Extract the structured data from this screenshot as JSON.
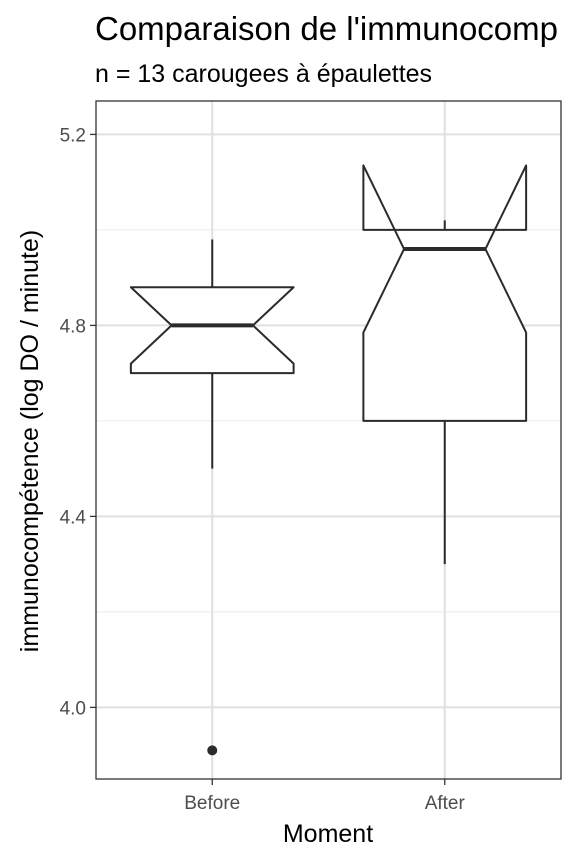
{
  "chart_data": {
    "type": "boxplot",
    "title": "Comparaison de l'immunocomp",
    "subtitle": "n = 13 carougees à épaulettes",
    "xlabel": "Moment",
    "ylabel": "immunocompétence (log DO / minute)",
    "categories": [
      "Before",
      "After"
    ],
    "ylim": [
      3.85,
      5.27
    ],
    "yticks": [
      4.0,
      4.4,
      4.8,
      5.2
    ],
    "ytick_labels": [
      "4.0",
      "4.4",
      "4.8",
      "5.2"
    ],
    "grid": true,
    "notched": true,
    "boxes": [
      {
        "category": "Before",
        "whisker_low": 4.5,
        "q1": 4.7,
        "median": 4.8,
        "q3": 4.88,
        "whisker_high": 4.98,
        "notch_low": 4.72,
        "notch_high": 4.88,
        "outliers": [
          3.91
        ]
      },
      {
        "category": "After",
        "whisker_low": 4.3,
        "q1": 4.6,
        "median": 4.96,
        "q3": 5.0,
        "whisker_high": 5.02,
        "notch_low": 4.785,
        "notch_high": 5.135,
        "outliers": []
      }
    ]
  }
}
